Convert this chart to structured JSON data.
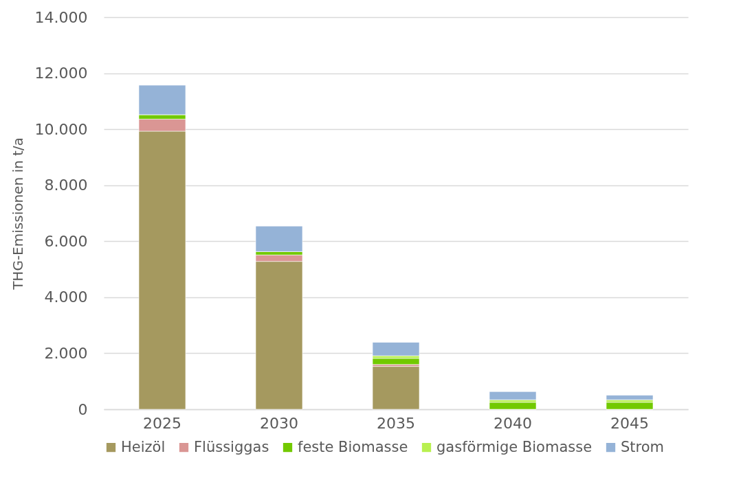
{
  "chart_data": {
    "type": "bar",
    "stacked": true,
    "ylabel": "THG-Emissionen in t/a",
    "categories": [
      "2025",
      "2030",
      "2035",
      "2040",
      "2045"
    ],
    "series": [
      {
        "name": "Heizöl",
        "color": "#a5995f",
        "values": [
          9930,
          5280,
          1530,
          0,
          0
        ]
      },
      {
        "name": "Flüssiggas",
        "color": "#da9694",
        "values": [
          430,
          230,
          70,
          0,
          0
        ]
      },
      {
        "name": "feste Biomasse",
        "color": "#72c900",
        "values": [
          160,
          120,
          220,
          250,
          250
        ]
      },
      {
        "name": "gasförmige Biomasse",
        "color": "#b8f050",
        "values": [
          0,
          0,
          90,
          90,
          90
        ]
      },
      {
        "name": "Strom",
        "color": "#95b3d7",
        "values": [
          1050,
          910,
          480,
          290,
          160
        ]
      }
    ],
    "ylim": [
      0,
      14000
    ],
    "yticks": [
      {
        "value": 0,
        "label": "0"
      },
      {
        "value": 2000,
        "label": "2.000"
      },
      {
        "value": 4000,
        "label": "4.000"
      },
      {
        "value": 6000,
        "label": "6.000"
      },
      {
        "value": 8000,
        "label": "8.000"
      },
      {
        "value": 10000,
        "label": "10.000"
      },
      {
        "value": 12000,
        "label": "12.000"
      },
      {
        "value": 14000,
        "label": "14.000"
      }
    ],
    "grid": "y",
    "legend": "bottom"
  }
}
